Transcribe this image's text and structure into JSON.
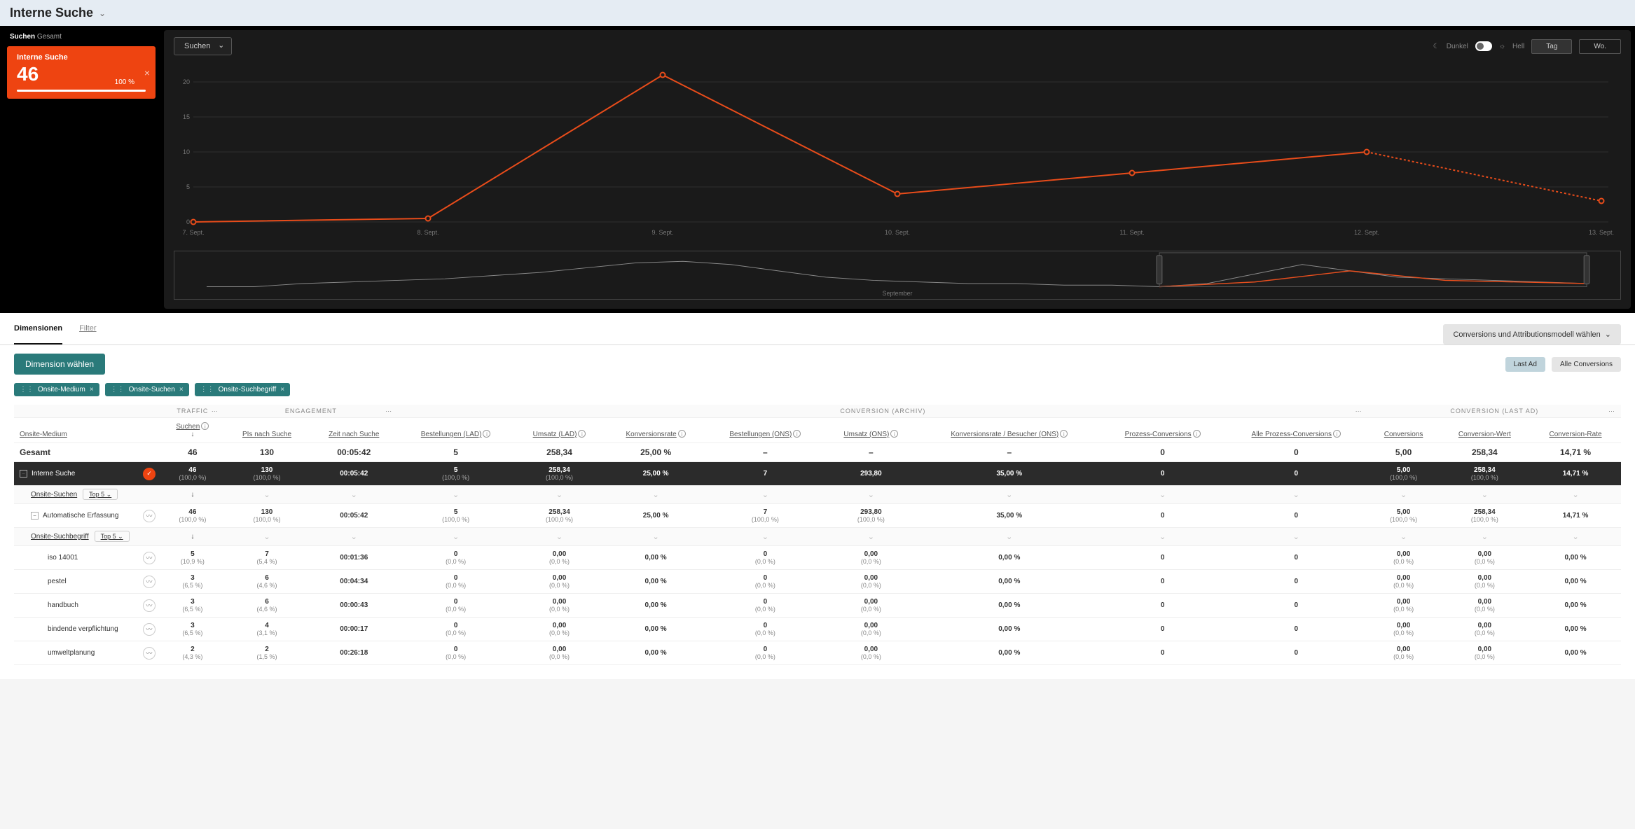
{
  "header": {
    "title": "Interne Suche"
  },
  "leftPanel": {
    "titleBold": "Suchen",
    "titleLight": "Gesamt"
  },
  "metricCard": {
    "label": "Interne Suche",
    "value": "46",
    "percent": "100 %"
  },
  "chart": {
    "dropdown": "Suchen",
    "theme": {
      "dark": "Dunkel",
      "light": "Hell"
    },
    "periods": {
      "day": "Tag",
      "week": "Wo."
    },
    "yTicks": [
      0,
      5,
      10,
      15,
      20
    ],
    "ylim": 22,
    "lineColor": "#e84c1a",
    "gridColor": "#2f2f2f",
    "xLabels": [
      "7. Sept.",
      "8. Sept.",
      "9. Sept.",
      "10. Sept.",
      "11. Sept.",
      "12. Sept.",
      "13. Sept."
    ],
    "points": [
      0,
      0.5,
      21,
      4,
      7,
      10,
      3
    ],
    "dashedFrom": 5,
    "brushLabel": "September"
  },
  "midbar": {
    "tabs": {
      "dimensionen": "Dimensionen",
      "filter": "Filter"
    },
    "convSelector": "Conversions und Attributionsmodell wählen",
    "lastAd": "Last Ad",
    "allConv": "Alle Conversions"
  },
  "dimBtn": "Dimension wählen",
  "chips": [
    "Onsite-Medium",
    "Onsite-Suchen",
    "Onsite-Suchbegriff"
  ],
  "table": {
    "groups": {
      "traffic": "TRAFFIC",
      "engagement": "ENGAGEMENT",
      "convArchiv": "CONVERSION (ARCHIV)",
      "convLast": "CONVERSION (LAST AD)"
    },
    "headers": {
      "onsiteMedium": "Onsite-Medium",
      "suchen": "Suchen",
      "pisNachSuche": "PIs nach Suche",
      "zeitNachSuche": "Zeit nach Suche",
      "bestellungenLAD": "Bestellungen (LAD)",
      "umsatzLAD": "Umsatz (LAD)",
      "konversionsrate": "Konversionsrate",
      "bestellungenONS": "Bestellungen (ONS)",
      "umsatzONS": "Umsatz (ONS)",
      "konvBesucher": "Konversionsrate / Besucher (ONS)",
      "prozessConv": "Prozess-Conversions",
      "alleProzess": "Alle Prozess-Conversions",
      "conversions": "Conversions",
      "convWert": "Conversion-Wert",
      "convRate": "Conversion-Rate"
    },
    "gesamt": {
      "label": "Gesamt",
      "cells": [
        "46",
        "130",
        "00:05:42",
        "5",
        "258,34",
        "25,00 %",
        "–",
        "–",
        "–",
        "0",
        "0",
        "5,00",
        "258,34",
        "14,71 %"
      ]
    },
    "interneSuche": {
      "label": "Interne Suche",
      "cells": [
        "46",
        "130",
        "00:05:42",
        "5",
        "258,34",
        "25,00 %",
        "7",
        "293,80",
        "35,00 %",
        "0",
        "0",
        "5,00",
        "258,34",
        "14,71 %"
      ],
      "subs": [
        "(100,0 %)",
        "(100,0 %)",
        "",
        "(100,0 %)",
        "(100,0 %)",
        "",
        "",
        "",
        "",
        "",
        "",
        "(100,0 %)",
        "(100,0 %)",
        ""
      ]
    },
    "onsiteSuchen": {
      "label": "Onsite-Suchen",
      "top5": "Top 5"
    },
    "autoErf": {
      "label": "Automatische Erfassung",
      "cells": [
        "46",
        "130",
        "00:05:42",
        "5",
        "258,34",
        "25,00 %",
        "7",
        "293,80",
        "35,00 %",
        "0",
        "0",
        "5,00",
        "258,34",
        "14,71 %"
      ],
      "subs": [
        "(100,0 %)",
        "(100,0 %)",
        "",
        "(100,0 %)",
        "(100,0 %)",
        "",
        "(100,0 %)",
        "(100,0 %)",
        "",
        "",
        "",
        "(100,0 %)",
        "(100,0 %)",
        ""
      ]
    },
    "onsiteSuchbegriff": {
      "label": "Onsite-Suchbegriff",
      "top5": "Top 5"
    },
    "terms": [
      {
        "label": "iso 14001",
        "cells": [
          "5",
          "7",
          "00:01:36",
          "0",
          "0,00",
          "0,00 %",
          "0",
          "0,00",
          "0,00 %",
          "0",
          "0",
          "0,00",
          "0,00",
          "0,00 %"
        ],
        "subs": [
          "(10,9 %)",
          "(5,4 %)",
          "",
          "(0,0 %)",
          "(0,0 %)",
          "",
          "(0,0 %)",
          "(0,0 %)",
          "",
          "",
          "",
          "(0,0 %)",
          "(0,0 %)",
          ""
        ]
      },
      {
        "label": "pestel",
        "cells": [
          "3",
          "6",
          "00:04:34",
          "0",
          "0,00",
          "0,00 %",
          "0",
          "0,00",
          "0,00 %",
          "0",
          "0",
          "0,00",
          "0,00",
          "0,00 %"
        ],
        "subs": [
          "(6,5 %)",
          "(4,6 %)",
          "",
          "(0,0 %)",
          "(0,0 %)",
          "",
          "(0,0 %)",
          "(0,0 %)",
          "",
          "",
          "",
          "(0,0 %)",
          "(0,0 %)",
          ""
        ]
      },
      {
        "label": "handbuch",
        "cells": [
          "3",
          "6",
          "00:00:43",
          "0",
          "0,00",
          "0,00 %",
          "0",
          "0,00",
          "0,00 %",
          "0",
          "0",
          "0,00",
          "0,00",
          "0,00 %"
        ],
        "subs": [
          "(6,5 %)",
          "(4,6 %)",
          "",
          "(0,0 %)",
          "(0,0 %)",
          "",
          "(0,0 %)",
          "(0,0 %)",
          "",
          "",
          "",
          "(0,0 %)",
          "(0,0 %)",
          ""
        ]
      },
      {
        "label": "bindende verpflichtung",
        "cells": [
          "3",
          "4",
          "00:00:17",
          "0",
          "0,00",
          "0,00 %",
          "0",
          "0,00",
          "0,00 %",
          "0",
          "0",
          "0,00",
          "0,00",
          "0,00 %"
        ],
        "subs": [
          "(6,5 %)",
          "(3,1 %)",
          "",
          "(0,0 %)",
          "(0,0 %)",
          "",
          "(0,0 %)",
          "(0,0 %)",
          "",
          "",
          "",
          "(0,0 %)",
          "(0,0 %)",
          ""
        ]
      },
      {
        "label": "umweltplanung",
        "cells": [
          "2",
          "2",
          "00:26:18",
          "0",
          "0,00",
          "0,00 %",
          "0",
          "0,00",
          "0,00 %",
          "0",
          "0",
          "0,00",
          "0,00",
          "0,00 %"
        ],
        "subs": [
          "(4,3 %)",
          "(1,5 %)",
          "",
          "(0,0 %)",
          "(0,0 %)",
          "",
          "(0,0 %)",
          "(0,0 %)",
          "",
          "",
          "",
          "(0,0 %)",
          "(0,0 %)",
          ""
        ]
      }
    ]
  }
}
